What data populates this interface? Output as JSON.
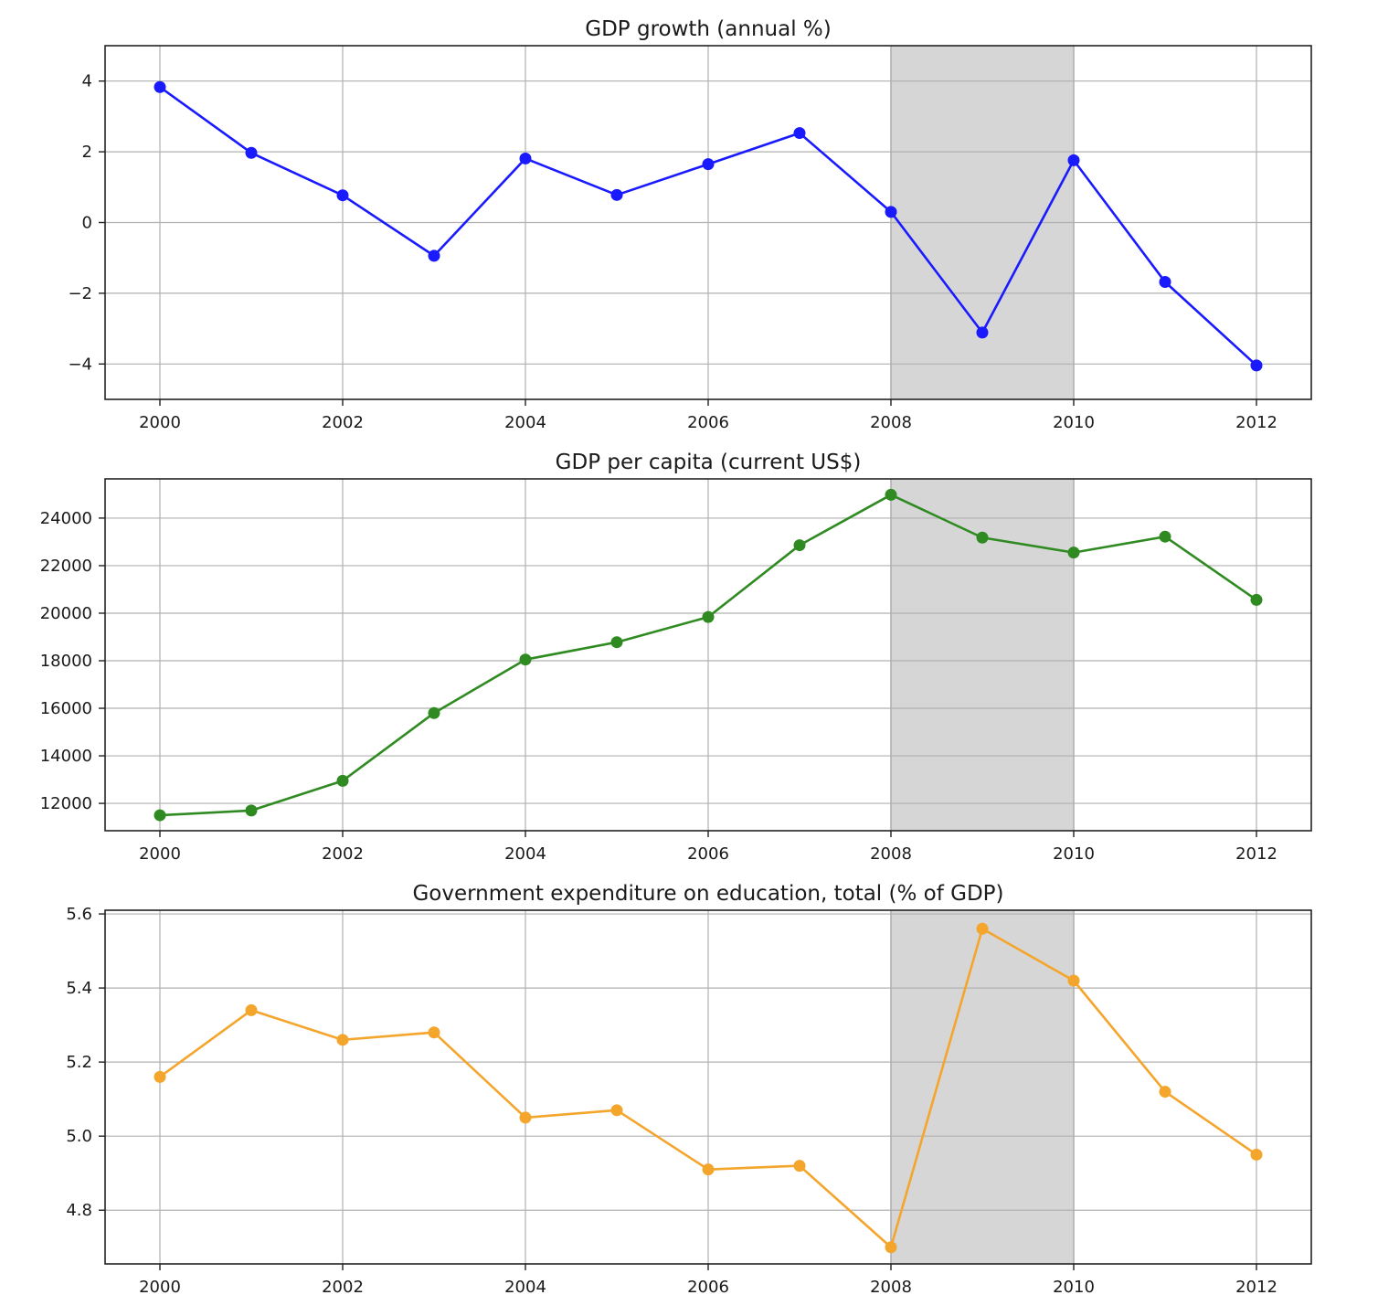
{
  "chart_data": [
    {
      "type": "line",
      "title": "GDP growth (annual %)",
      "xlabel": "",
      "ylabel": "",
      "x": [
        2000,
        2001,
        2002,
        2003,
        2004,
        2005,
        2006,
        2007,
        2008,
        2009,
        2010,
        2011,
        2012
      ],
      "series": [
        {
          "values": [
            3.83,
            1.97,
            0.77,
            -0.94,
            1.81,
            0.78,
            1.65,
            2.53,
            0.3,
            -3.11,
            1.76,
            -1.68,
            -4.04
          ],
          "color": "#1a1aff"
        }
      ],
      "xlim": [
        1999.4,
        2012.6
      ],
      "ylim": [
        -5.0,
        5.0
      ],
      "xticks": [
        2000,
        2002,
        2004,
        2006,
        2008,
        2010,
        2012
      ],
      "xtick_labels": [
        "2000",
        "2002",
        "2004",
        "2006",
        "2008",
        "2010",
        "2012"
      ],
      "yticks": [
        -4,
        -2,
        0,
        2,
        4
      ],
      "ytick_labels": [
        "−4",
        "−2",
        "0",
        "2",
        "4"
      ],
      "shaded_span": [
        2008,
        2010
      ],
      "shaded_color": "#d6d6d6",
      "grid": true
    },
    {
      "type": "line",
      "title": "GDP per capita (current US$)",
      "xlabel": "",
      "ylabel": "",
      "x": [
        2000,
        2001,
        2002,
        2003,
        2004,
        2005,
        2006,
        2007,
        2008,
        2009,
        2010,
        2011,
        2012
      ],
      "series": [
        {
          "values": [
            11500,
            11700,
            12950,
            15800,
            18050,
            18780,
            19840,
            22860,
            24980,
            23180,
            22550,
            23220,
            20560
          ],
          "color": "#2f8b21"
        }
      ],
      "xlim": [
        1999.4,
        2012.6
      ],
      "ylim": [
        10850,
        25650
      ],
      "xticks": [
        2000,
        2002,
        2004,
        2006,
        2008,
        2010,
        2012
      ],
      "xtick_labels": [
        "2000",
        "2002",
        "2004",
        "2006",
        "2008",
        "2010",
        "2012"
      ],
      "yticks": [
        12000,
        14000,
        16000,
        18000,
        20000,
        22000,
        24000
      ],
      "ytick_labels": [
        "12000",
        "14000",
        "16000",
        "18000",
        "20000",
        "22000",
        "24000"
      ],
      "shaded_span": [
        2008,
        2010
      ],
      "shaded_color": "#d6d6d6",
      "grid": true
    },
    {
      "type": "line",
      "title": "Government expenditure on education, total (% of GDP)",
      "xlabel": "",
      "ylabel": "",
      "x": [
        2000,
        2001,
        2002,
        2003,
        2004,
        2005,
        2006,
        2007,
        2008,
        2009,
        2010,
        2011,
        2012
      ],
      "series": [
        {
          "values": [
            5.16,
            5.34,
            5.26,
            5.28,
            5.05,
            5.07,
            4.91,
            4.92,
            4.7,
            5.56,
            5.42,
            5.12,
            4.95
          ],
          "color": "#f4a52c"
        }
      ],
      "xlim": [
        1999.4,
        2012.6
      ],
      "ylim": [
        4.655,
        5.61
      ],
      "xticks": [
        2000,
        2002,
        2004,
        2006,
        2008,
        2010,
        2012
      ],
      "xtick_labels": [
        "2000",
        "2002",
        "2004",
        "2006",
        "2008",
        "2010",
        "2012"
      ],
      "yticks": [
        4.8,
        5.0,
        5.2,
        5.4,
        5.6
      ],
      "ytick_labels": [
        "4.8",
        "5.0",
        "5.2",
        "5.4",
        "5.6"
      ],
      "shaded_span": [
        2008,
        2010
      ],
      "shaded_color": "#d6d6d6",
      "grid": true
    }
  ]
}
